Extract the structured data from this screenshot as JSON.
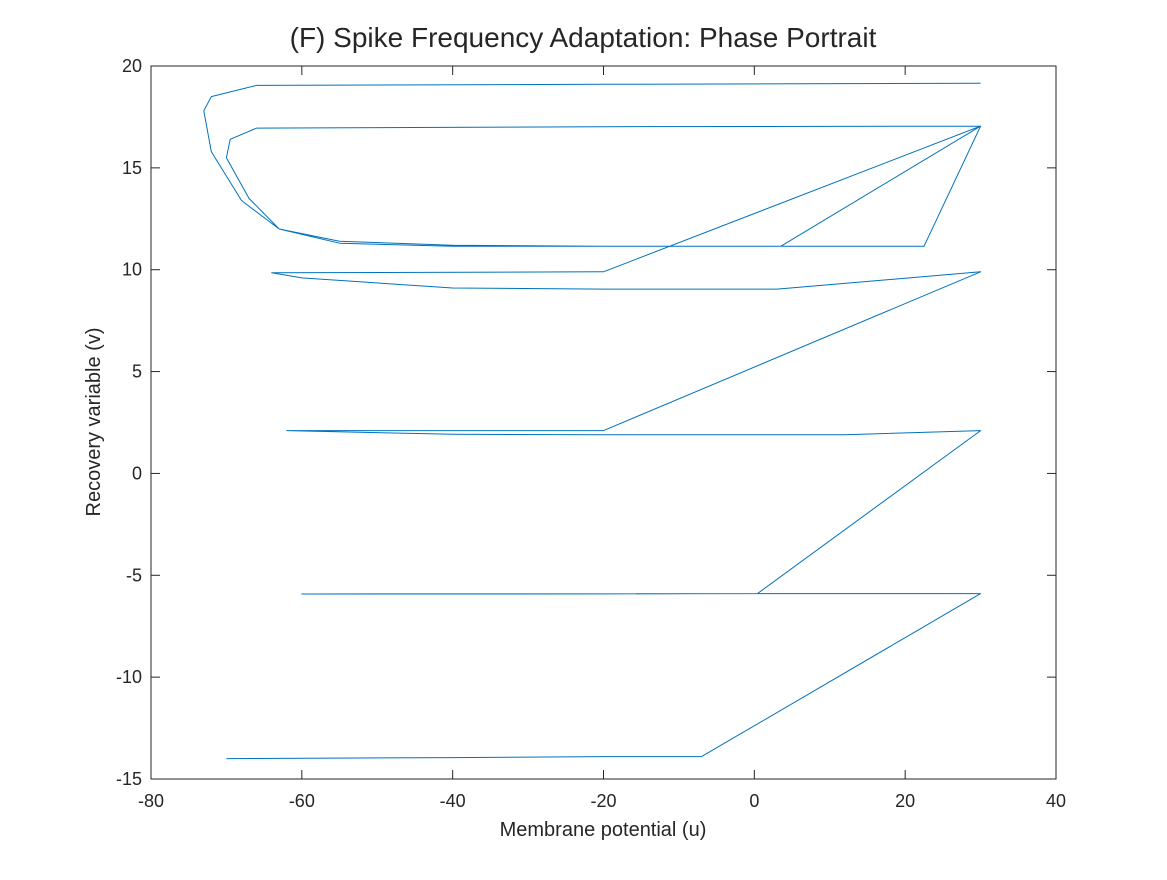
{
  "chart_data": {
    "type": "line",
    "title": "(F) Spike Frequency Adaptation: Phase Portrait",
    "xlabel": "Membrane potential (u)",
    "ylabel": "Recovery variable (v)",
    "xlim": [
      -80,
      40
    ],
    "ylim": [
      -15,
      20
    ],
    "xticks": [
      "-80",
      "-60",
      "-40",
      "-20",
      "0",
      "20",
      "40"
    ],
    "yticks": [
      "20",
      "15",
      "10",
      "5",
      "0",
      "-5",
      "-10",
      "-15"
    ],
    "grid": false,
    "legend": "none",
    "series": [
      {
        "color": "#0072BD",
        "x": [
          -70,
          -40,
          -20,
          -7,
          30,
          0.4,
          -20,
          -40,
          -60,
          0.4,
          30,
          12,
          -20,
          -40,
          -62,
          -20,
          30,
          3,
          -20,
          -40,
          -60,
          -64,
          -20,
          30,
          3.5,
          -20,
          -40,
          -55,
          -63,
          -67,
          -70,
          -69.5,
          -66,
          -20,
          30,
          22.5,
          -20,
          -40,
          -55,
          -63,
          -68,
          -72,
          -73,
          -72,
          -66,
          -20,
          30
        ],
        "y": [
          -14,
          -13.95,
          -13.9,
          -13.9,
          -5.9,
          -5.9,
          -5.92,
          -5.92,
          -5.92,
          -5.9,
          2.1,
          1.9,
          1.9,
          1.92,
          2.1,
          2.1,
          9.9,
          9.05,
          9.05,
          9.1,
          9.6,
          9.85,
          9.9,
          17.05,
          11.15,
          11.15,
          11.15,
          11.3,
          12,
          13.5,
          15.5,
          16.4,
          16.95,
          17.02,
          17.05,
          11.15,
          11.15,
          11.2,
          11.4,
          12,
          13.4,
          15.8,
          17.8,
          18.5,
          19.05,
          19.1,
          19.15
        ]
      }
    ]
  }
}
